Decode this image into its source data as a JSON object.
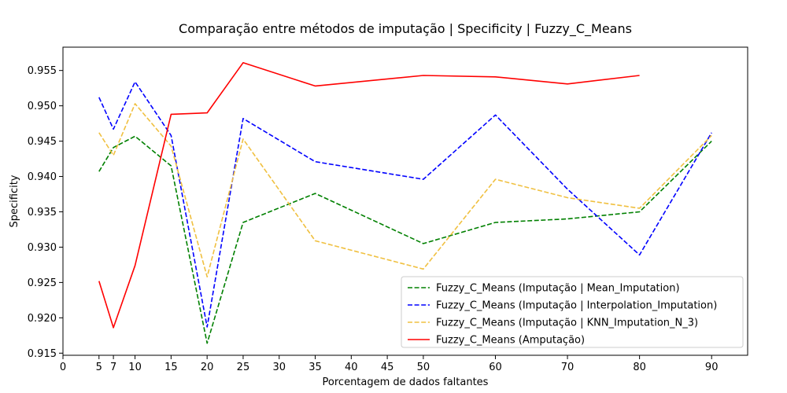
{
  "chart_data": {
    "type": "line",
    "title": "Comparação entre métodos de imputação | Specificity | Fuzzy_C_Means",
    "xlabel": "Porcentagem de dados faltantes",
    "ylabel": "Specificity",
    "xlim": [
      0,
      95
    ],
    "ylim": [
      0.9147,
      0.9583
    ],
    "xticks": [
      0,
      5,
      7,
      10,
      15,
      20,
      25,
      30,
      35,
      40,
      45,
      50,
      60,
      70,
      80,
      90
    ],
    "yticks": [
      0.915,
      0.92,
      0.925,
      0.93,
      0.935,
      0.94,
      0.945,
      0.95,
      0.955
    ],
    "ytick_labels": [
      "0.915",
      "0.920",
      "0.925",
      "0.930",
      "0.935",
      "0.940",
      "0.945",
      "0.950",
      "0.955"
    ],
    "legend_position": "lower-right",
    "grid": false,
    "series": [
      {
        "name": "Fuzzy_C_Means (Imputação | Mean_Imputation)",
        "color": "#008000",
        "dash": "dashed",
        "x": [
          5,
          7,
          10,
          15,
          20,
          25,
          35,
          50,
          60,
          70,
          80,
          90
        ],
        "values": [
          0.9407,
          0.9441,
          0.9457,
          0.9415,
          0.9164,
          0.9335,
          0.9376,
          0.9305,
          0.9335,
          0.934,
          0.935,
          0.945
        ]
      },
      {
        "name": "Fuzzy_C_Means (Imputação | Interpolation_Imputation)",
        "color": "#0000ff",
        "dash": "dashed",
        "x": [
          5,
          7,
          10,
          15,
          20,
          25,
          35,
          50,
          60,
          70,
          80,
          90
        ],
        "values": [
          0.9512,
          0.9467,
          0.9534,
          0.9458,
          0.9187,
          0.9482,
          0.9421,
          0.9396,
          0.9487,
          0.9382,
          0.9289,
          0.9462
        ]
      },
      {
        "name": "Fuzzy_C_Means (Imputação | KNN_Imputation_N_3)",
        "color": "#f0c040",
        "dash": "dashed",
        "x": [
          5,
          7,
          10,
          15,
          20,
          25,
          35,
          50,
          60,
          70,
          80,
          90
        ],
        "values": [
          0.9462,
          0.943,
          0.9503,
          0.9443,
          0.9258,
          0.9453,
          0.9309,
          0.9269,
          0.9396,
          0.937,
          0.9355,
          0.9458
        ]
      },
      {
        "name": "Fuzzy_C_Means (Amputação)",
        "color": "#ff0000",
        "dash": "solid",
        "x": [
          5,
          7,
          10,
          15,
          20,
          25,
          35,
          50,
          60,
          70,
          80
        ],
        "values": [
          0.9252,
          0.9186,
          0.9274,
          0.9488,
          0.949,
          0.9561,
          0.9528,
          0.9543,
          0.9541,
          0.9531,
          0.9543
        ]
      }
    ]
  }
}
